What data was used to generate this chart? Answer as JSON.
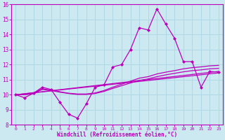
{
  "background_color": "#cce8f0",
  "grid_color": "#b0d8e4",
  "line_color": "#bb00bb",
  "marker_color": "#bb00bb",
  "xlabel": "Windchill (Refroidissement éolien,°C)",
  "ylim": [
    8,
    16
  ],
  "xlim": [
    -0.5,
    23.5
  ],
  "yticks": [
    8,
    9,
    10,
    11,
    12,
    13,
    14,
    15,
    16
  ],
  "xticks": [
    0,
    1,
    2,
    3,
    4,
    5,
    6,
    7,
    8,
    9,
    10,
    11,
    12,
    13,
    14,
    15,
    16,
    17,
    18,
    19,
    20,
    21,
    22,
    23
  ],
  "series1_x": [
    0,
    1,
    2,
    3,
    4,
    5,
    6,
    7,
    8,
    9,
    10,
    11,
    12,
    13,
    14,
    15,
    16,
    17,
    18,
    19,
    20,
    21,
    22,
    23
  ],
  "series1_y": [
    10.0,
    9.8,
    10.1,
    10.5,
    10.35,
    9.5,
    8.7,
    8.45,
    9.4,
    10.5,
    10.65,
    11.85,
    12.0,
    13.0,
    14.45,
    14.3,
    15.7,
    14.7,
    13.75,
    12.2,
    12.2,
    10.5,
    11.55,
    11.5
  ],
  "series2_x": [
    0,
    1,
    2,
    3,
    4,
    5,
    6,
    7,
    8,
    9,
    10,
    11,
    12,
    13,
    14,
    15,
    16,
    17,
    18,
    19,
    20,
    21,
    22,
    23
  ],
  "series2_y": [
    10.0,
    10.0,
    10.1,
    10.4,
    10.3,
    10.2,
    10.1,
    10.05,
    10.05,
    10.12,
    10.28,
    10.5,
    10.7,
    10.9,
    11.1,
    11.2,
    11.38,
    11.5,
    11.6,
    11.72,
    11.8,
    11.85,
    11.92,
    11.95
  ],
  "series3_x": [
    0,
    23
  ],
  "series3_y": [
    10.0,
    11.55
  ],
  "series4_x": [
    0,
    23
  ],
  "series4_y": [
    10.0,
    11.45
  ],
  "series5_x": [
    0,
    1,
    2,
    3,
    4,
    5,
    6,
    7,
    8,
    9,
    10,
    11,
    12,
    13,
    14,
    15,
    16,
    17,
    18,
    19,
    20,
    21,
    22,
    23
  ],
  "series5_y": [
    10.0,
    10.0,
    10.08,
    10.35,
    10.28,
    10.17,
    10.08,
    10.02,
    10.02,
    10.08,
    10.22,
    10.42,
    10.6,
    10.78,
    10.95,
    11.05,
    11.2,
    11.32,
    11.42,
    11.52,
    11.6,
    11.65,
    11.72,
    11.75
  ]
}
